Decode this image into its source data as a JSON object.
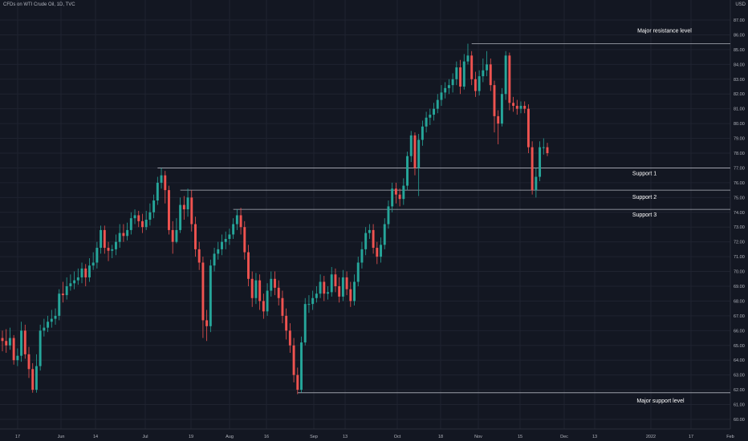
{
  "header": {
    "symbol_line": "CFDs on WTI Crude Oil, 1D, TVC",
    "currency": "USD"
  },
  "chart_data": {
    "type": "candlestick",
    "title": "CFDs on WTI Crude Oil, 1D, TVC",
    "ylabel": "USD",
    "ylim": [
      59.5,
      87.5
    ],
    "y_ticks": [
      "60.00",
      "61.00",
      "62.00",
      "63.00",
      "64.00",
      "65.00",
      "66.00",
      "67.00",
      "68.00",
      "69.00",
      "70.00",
      "71.00",
      "72.00",
      "73.00",
      "74.00",
      "75.00",
      "76.00",
      "77.00",
      "78.00",
      "79.00",
      "80.00",
      "81.00",
      "82.00",
      "83.00",
      "84.00",
      "85.00",
      "86.00",
      "87.00"
    ],
    "x_ticks": [
      "17",
      "Jun",
      "14",
      "Jul",
      "19",
      "Aug",
      "16",
      "Sep",
      "13",
      "Oct",
      "18",
      "Nov",
      "15",
      "Dec",
      "13",
      "2022",
      "17",
      "Feb"
    ],
    "levels": [
      {
        "label": "Major resistance level",
        "value": 85.4
      },
      {
        "label": "Support 1",
        "value": 77.0
      },
      {
        "label": "Support 2",
        "value": 75.5
      },
      {
        "label": "Support 3",
        "value": 74.2
      },
      {
        "label": "Major support level",
        "value": 61.8
      }
    ],
    "colors": {
      "up": "#26a69a",
      "down": "#ef5350",
      "grid": "#1f2330",
      "line": "#b2b5be",
      "bg": "#131722"
    },
    "grid": true,
    "candles": [
      [
        65.5,
        65.3,
        66.0,
        64.6
      ],
      [
        65.3,
        65.0,
        66.1,
        64.5
      ],
      [
        65.0,
        65.5,
        66.2,
        64.7
      ],
      [
        65.5,
        64.0,
        65.7,
        63.7
      ],
      [
        64.0,
        64.3,
        64.8,
        63.6
      ],
      [
        64.3,
        66.0,
        66.6,
        63.9
      ],
      [
        66.0,
        64.4,
        66.4,
        64.1
      ],
      [
        64.4,
        63.4,
        64.9,
        62.8
      ],
      [
        63.4,
        62.0,
        63.8,
        61.8
      ],
      [
        62.0,
        63.6,
        64.4,
        61.8
      ],
      [
        63.6,
        66.0,
        66.4,
        63.3
      ],
      [
        66.0,
        66.2,
        66.8,
        65.6
      ],
      [
        66.2,
        66.6,
        67.0,
        65.9
      ],
      [
        66.6,
        66.8,
        67.4,
        66.2
      ],
      [
        66.8,
        67.0,
        67.5,
        66.4
      ],
      [
        67.0,
        68.5,
        68.8,
        66.7
      ],
      [
        68.5,
        68.4,
        69.3,
        67.9
      ],
      [
        68.4,
        69.0,
        69.6,
        68.1
      ],
      [
        69.0,
        69.2,
        69.8,
        68.7
      ],
      [
        69.2,
        69.4,
        70.0,
        68.8
      ],
      [
        69.4,
        69.6,
        70.2,
        69.1
      ],
      [
        69.6,
        70.2,
        70.6,
        69.2
      ],
      [
        70.2,
        69.6,
        70.5,
        69.0
      ],
      [
        69.6,
        70.4,
        70.9,
        69.3
      ],
      [
        70.4,
        70.6,
        71.3,
        70.1
      ],
      [
        70.6,
        71.6,
        72.0,
        70.2
      ],
      [
        71.6,
        72.8,
        73.1,
        71.2
      ],
      [
        72.8,
        71.6,
        73.1,
        71.2
      ],
      [
        71.6,
        71.4,
        72.0,
        70.7
      ],
      [
        71.4,
        71.5,
        71.8,
        70.9
      ],
      [
        71.5,
        72.0,
        72.5,
        71.1
      ],
      [
        72.0,
        72.6,
        73.2,
        71.6
      ],
      [
        72.6,
        72.4,
        73.2,
        72.0
      ],
      [
        72.4,
        72.8,
        73.3,
        72.1
      ],
      [
        72.8,
        73.6,
        74.0,
        72.5
      ],
      [
        73.6,
        73.8,
        74.2,
        73.2
      ],
      [
        73.8,
        73.4,
        74.1,
        73.0
      ],
      [
        73.4,
        73.0,
        73.9,
        72.6
      ],
      [
        73.0,
        73.5,
        74.1,
        72.8
      ],
      [
        73.5,
        74.0,
        74.6,
        73.1
      ],
      [
        74.0,
        74.8,
        75.2,
        73.6
      ],
      [
        74.8,
        76.0,
        76.4,
        74.5
      ],
      [
        76.0,
        76.5,
        77.0,
        75.6
      ],
      [
        76.5,
        75.5,
        76.8,
        74.6
      ],
      [
        75.5,
        72.8,
        75.8,
        72.5
      ],
      [
        72.8,
        72.0,
        73.4,
        71.2
      ],
      [
        72.0,
        72.8,
        73.6,
        71.9
      ],
      [
        72.8,
        74.5,
        75.0,
        72.6
      ],
      [
        74.5,
        74.2,
        75.1,
        73.5
      ],
      [
        74.2,
        75.0,
        75.6,
        73.7
      ],
      [
        75.0,
        73.2,
        75.5,
        72.7
      ],
      [
        73.2,
        71.5,
        73.7,
        71.0
      ],
      [
        71.5,
        70.6,
        72.0,
        70.1
      ],
      [
        70.6,
        66.7,
        71.0,
        65.5
      ],
      [
        66.7,
        66.3,
        67.4,
        65.3
      ],
      [
        66.3,
        70.4,
        70.8,
        65.9
      ],
      [
        70.4,
        71.2,
        71.6,
        70.0
      ],
      [
        71.2,
        71.5,
        72.0,
        70.8
      ],
      [
        71.5,
        72.0,
        72.5,
        71.1
      ],
      [
        72.0,
        72.2,
        72.7,
        71.5
      ],
      [
        72.2,
        72.5,
        72.9,
        71.8
      ],
      [
        72.5,
        73.2,
        73.6,
        72.2
      ],
      [
        73.2,
        73.8,
        74.2,
        72.8
      ],
      [
        73.8,
        73.0,
        74.3,
        72.5
      ],
      [
        73.0,
        71.3,
        73.4,
        70.8
      ],
      [
        71.3,
        69.5,
        71.8,
        69.0
      ],
      [
        69.5,
        68.2,
        70.0,
        67.6
      ],
      [
        68.2,
        69.4,
        69.9,
        67.8
      ],
      [
        69.4,
        68.0,
        69.8,
        67.4
      ],
      [
        68.0,
        67.3,
        68.5,
        66.8
      ],
      [
        67.3,
        68.7,
        69.2,
        67.0
      ],
      [
        68.7,
        69.5,
        70.0,
        68.3
      ],
      [
        69.5,
        68.9,
        70.0,
        68.4
      ],
      [
        68.9,
        68.2,
        69.4,
        67.7
      ],
      [
        68.2,
        67.0,
        68.7,
        66.5
      ],
      [
        67.0,
        66.0,
        67.5,
        65.4
      ],
      [
        66.0,
        65.0,
        66.5,
        64.5
      ],
      [
        65.0,
        63.0,
        65.5,
        62.5
      ],
      [
        63.0,
        62.0,
        63.5,
        61.7
      ],
      [
        62.0,
        65.2,
        65.6,
        61.8
      ],
      [
        65.2,
        67.8,
        68.2,
        65.0
      ],
      [
        67.8,
        67.8,
        68.4,
        67.2
      ],
      [
        67.8,
        68.2,
        68.7,
        67.4
      ],
      [
        68.2,
        68.5,
        69.0,
        67.9
      ],
      [
        68.5,
        69.3,
        69.8,
        68.2
      ],
      [
        69.3,
        68.5,
        69.7,
        68.0
      ],
      [
        68.5,
        68.6,
        69.0,
        68.1
      ],
      [
        68.6,
        69.8,
        70.3,
        68.3
      ],
      [
        69.8,
        69.0,
        70.2,
        68.6
      ],
      [
        69.0,
        68.3,
        69.6,
        67.9
      ],
      [
        68.3,
        69.6,
        70.1,
        68.0
      ],
      [
        69.6,
        68.8,
        70.0,
        68.4
      ],
      [
        68.8,
        68.0,
        69.3,
        67.6
      ],
      [
        68.0,
        69.3,
        69.8,
        67.7
      ],
      [
        69.3,
        70.6,
        71.0,
        69.0
      ],
      [
        70.6,
        71.5,
        72.0,
        70.2
      ],
      [
        71.5,
        72.6,
        73.0,
        71.1
      ],
      [
        72.6,
        72.8,
        73.2,
        72.2
      ],
      [
        72.8,
        71.6,
        73.2,
        71.2
      ],
      [
        71.6,
        71.0,
        72.0,
        70.5
      ],
      [
        71.0,
        71.8,
        72.3,
        70.6
      ],
      [
        71.8,
        73.2,
        73.6,
        71.5
      ],
      [
        73.2,
        74.4,
        74.8,
        72.9
      ],
      [
        74.4,
        75.6,
        76.0,
        74.0
      ],
      [
        75.6,
        75.2,
        76.0,
        74.6
      ],
      [
        75.2,
        74.9,
        75.6,
        74.4
      ],
      [
        74.9,
        75.8,
        76.3,
        74.5
      ],
      [
        75.8,
        77.8,
        78.1,
        75.5
      ],
      [
        77.8,
        79.2,
        79.5,
        77.4
      ],
      [
        79.2,
        77.0,
        79.4,
        76.5
      ],
      [
        77.0,
        78.9,
        79.3,
        75.1
      ],
      [
        78.9,
        79.8,
        80.2,
        78.5
      ],
      [
        79.8,
        80.4,
        80.8,
        79.4
      ],
      [
        80.4,
        80.6,
        81.0,
        79.9
      ],
      [
        80.6,
        81.0,
        81.4,
        80.2
      ],
      [
        81.0,
        81.6,
        82.0,
        80.7
      ],
      [
        81.6,
        82.1,
        82.6,
        81.2
      ],
      [
        82.1,
        82.4,
        82.8,
        81.7
      ],
      [
        82.4,
        82.6,
        83.0,
        82.0
      ],
      [
        82.6,
        83.0,
        83.4,
        82.1
      ],
      [
        83.0,
        83.8,
        84.2,
        82.6
      ],
      [
        83.8,
        82.5,
        84.3,
        82.0
      ],
      [
        82.5,
        84.2,
        84.7,
        82.3
      ],
      [
        84.2,
        84.6,
        85.4,
        84.0
      ],
      [
        84.6,
        83.0,
        84.9,
        82.6
      ],
      [
        83.0,
        82.2,
        83.5,
        81.8
      ],
      [
        82.2,
        83.2,
        83.6,
        81.9
      ],
      [
        83.2,
        83.6,
        84.4,
        82.8
      ],
      [
        83.6,
        84.0,
        84.9,
        83.2
      ],
      [
        84.0,
        82.6,
        84.4,
        82.2
      ],
      [
        82.6,
        80.5,
        82.9,
        79.4
      ],
      [
        80.5,
        80.0,
        80.9,
        78.6
      ],
      [
        80.0,
        82.0,
        82.4,
        79.8
      ],
      [
        82.0,
        84.6,
        84.9,
        81.6
      ],
      [
        84.6,
        81.4,
        84.8,
        80.9
      ],
      [
        81.4,
        81.2,
        81.8,
        80.8
      ],
      [
        81.2,
        81.0,
        81.6,
        80.6
      ],
      [
        81.0,
        81.2,
        81.5,
        80.7
      ],
      [
        81.2,
        81.0,
        81.5,
        80.7
      ],
      [
        81.0,
        78.4,
        81.3,
        78.0
      ],
      [
        78.4,
        75.5,
        78.8,
        75.2
      ],
      [
        75.5,
        76.4,
        77.0,
        75.0
      ],
      [
        76.4,
        78.4,
        78.8,
        76.1
      ],
      [
        78.4,
        78.4,
        79.0,
        77.9
      ],
      [
        78.4,
        78.0,
        78.7,
        77.8
      ]
    ]
  }
}
